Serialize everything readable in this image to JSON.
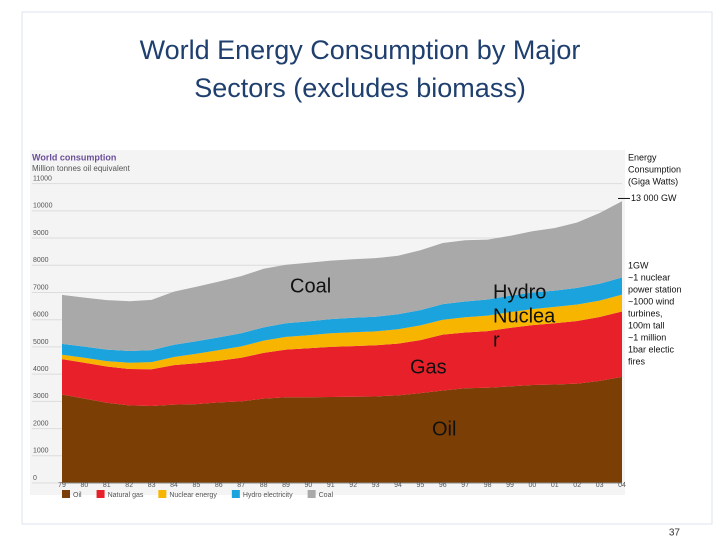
{
  "chart_data": {
    "type": "stacked_area",
    "title_lines": [
      "World Energy Consumption by Major",
      "Sectors (excludes biomass)"
    ],
    "subtitle": "World consumption",
    "y_label": "Million tonnes oil equivalent",
    "categories": [
      "79",
      "80",
      "81",
      "82",
      "83",
      "84",
      "85",
      "86",
      "87",
      "88",
      "89",
      "90",
      "91",
      "92",
      "93",
      "94",
      "95",
      "96",
      "97",
      "98",
      "99",
      "00",
      "01",
      "02",
      "03",
      "04"
    ],
    "series": [
      {
        "name": "Oil",
        "color": "#7b3f06",
        "values": [
          3250,
          3100,
          2950,
          2850,
          2830,
          2880,
          2900,
          2960,
          3000,
          3100,
          3150,
          3150,
          3160,
          3170,
          3180,
          3220,
          3300,
          3400,
          3480,
          3500,
          3550,
          3600,
          3620,
          3650,
          3750,
          3900
        ]
      },
      {
        "name": "Natural gas",
        "color": "#e8202a",
        "values": [
          1300,
          1320,
          1330,
          1340,
          1350,
          1450,
          1500,
          1530,
          1600,
          1680,
          1750,
          1800,
          1840,
          1860,
          1880,
          1900,
          1950,
          2050,
          2050,
          2080,
          2150,
          2200,
          2250,
          2300,
          2350,
          2400
        ]
      },
      {
        "name": "Nuclear energy",
        "color": "#f7b500",
        "values": [
          160,
          180,
          200,
          230,
          260,
          300,
          350,
          390,
          420,
          450,
          470,
          480,
          500,
          510,
          510,
          530,
          540,
          550,
          560,
          570,
          580,
          590,
          600,
          610,
          600,
          620
        ]
      },
      {
        "name": "Hydro electricity",
        "color": "#1aa3dd",
        "values": [
          400,
          410,
          420,
          430,
          440,
          450,
          460,
          470,
          480,
          490,
          500,
          510,
          520,
          530,
          540,
          550,
          560,
          570,
          580,
          590,
          600,
          610,
          600,
          610,
          620,
          630
        ]
      },
      {
        "name": "Coal",
        "color": "#a9a9aa",
        "values": [
          1800,
          1800,
          1820,
          1830,
          1850,
          1950,
          2000,
          2050,
          2100,
          2150,
          2150,
          2150,
          2150,
          2150,
          2150,
          2150,
          2200,
          2250,
          2250,
          2200,
          2200,
          2250,
          2300,
          2400,
          2600,
          2800
        ]
      }
    ],
    "ylim": [
      0,
      11500
    ],
    "yticks": [
      0,
      1000,
      2000,
      3000,
      4000,
      5000,
      6000,
      7000,
      8000,
      9000,
      10000,
      11000
    ],
    "y2lim": [
      0,
      14300
    ],
    "y2ticks": [
      {
        "value": 13000,
        "label": "13 000 GW"
      }
    ],
    "y2_title_lines": [
      "Energy",
      "Consumption",
      "(Giga Watts)"
    ],
    "grid": true,
    "annotations": [
      {
        "lines": [
          "Coal"
        ]
      },
      {
        "lines": [
          "Gas"
        ]
      },
      {
        "lines": [
          "Hydro",
          "Nuclea",
          "r"
        ]
      },
      {
        "lines": [
          "Oil"
        ]
      }
    ],
    "note_lines": [
      "1GW",
      "~1 nuclear",
      "power station",
      "~1000 wind",
      "turbines,",
      "100m tall",
      "~1 million",
      "1bar electic",
      "fires"
    ]
  },
  "page_number": "37"
}
